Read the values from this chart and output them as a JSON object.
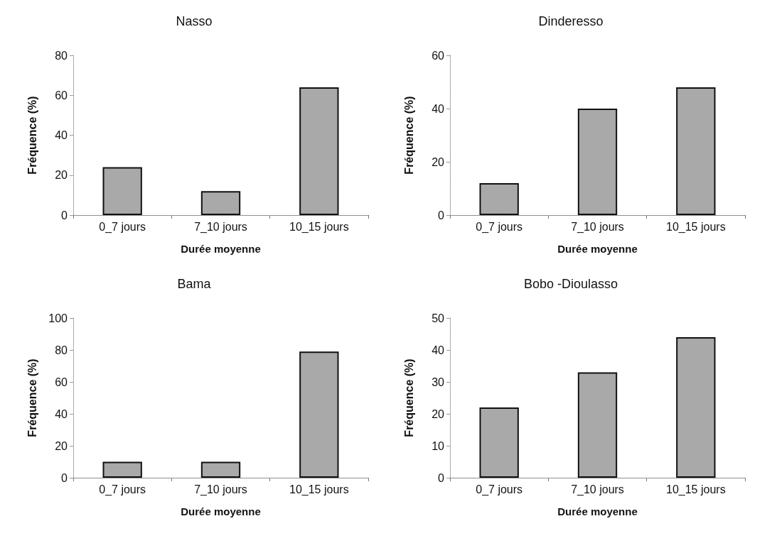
{
  "chart_data": [
    {
      "type": "bar",
      "title": "Nasso",
      "xlabel": "Durée moyenne",
      "ylabel": "Fréquence (%)",
      "categories": [
        "0_7 jours",
        "7_10 jours",
        "10_15 jours"
      ],
      "values": [
        24,
        12,
        64
      ],
      "color": "#a9a9a9",
      "ylim": [
        0,
        80
      ],
      "yticks": [
        0,
        20,
        40,
        60,
        80
      ],
      "grid": false
    },
    {
      "type": "bar",
      "title": "Dinderesso",
      "xlabel": "Durée moyenne",
      "ylabel": "Fréquence (%)",
      "categories": [
        "0_7 jours",
        "7_10 jours",
        "10_15 jours"
      ],
      "values": [
        12,
        40,
        48
      ],
      "color": "#a9a9a9",
      "ylim": [
        0,
        60
      ],
      "yticks": [
        0,
        20,
        40,
        60
      ],
      "grid": false
    },
    {
      "type": "bar",
      "title": "Bama",
      "xlabel": "Durée moyenne",
      "ylabel": "Fréquence (%)",
      "categories": [
        "0_7 jours",
        "7_10 jours",
        "10_15 jours"
      ],
      "values": [
        10,
        10,
        79
      ],
      "color": "#a9a9a9",
      "ylim": [
        0,
        100
      ],
      "yticks": [
        0,
        20,
        40,
        60,
        80,
        100
      ],
      "grid": false
    },
    {
      "type": "bar",
      "title": "Bobo -Dioulasso",
      "xlabel": "Durée moyenne",
      "ylabel": "Fréquence (%)",
      "categories": [
        "0_7 jours",
        "7_10 jours",
        "10_15 jours"
      ],
      "values": [
        22,
        33,
        44
      ],
      "color": "#a9a9a9",
      "ylim": [
        0,
        50
      ],
      "yticks": [
        0,
        10,
        20,
        30,
        40,
        50
      ],
      "grid": false
    }
  ]
}
